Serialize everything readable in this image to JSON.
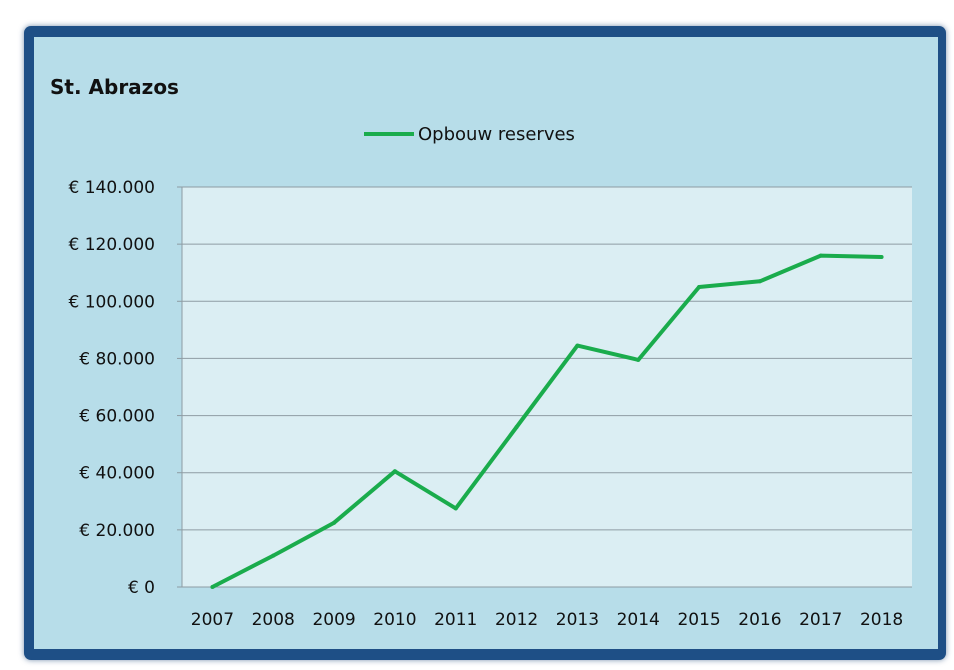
{
  "colors": {
    "frame": "#1e4f86",
    "panel": "#b7dde9",
    "plot_area": "#dbeef3",
    "gridline": "#8e9ca3",
    "series": "#1aac4c"
  },
  "chart_data": {
    "type": "line",
    "title": "St. Abrazos",
    "xlabel": "",
    "ylabel": "",
    "legend_position": "top-center",
    "grid": true,
    "x": [
      "2007",
      "2008",
      "2009",
      "2010",
      "2011",
      "2012",
      "2013",
      "2014",
      "2015",
      "2016",
      "2017",
      "2018"
    ],
    "ylim": [
      0,
      140000
    ],
    "y_ticks": [
      {
        "value": 0,
        "label": "€ 0"
      },
      {
        "value": 20000,
        "label": "€ 20.000"
      },
      {
        "value": 40000,
        "label": "€ 40.000"
      },
      {
        "value": 60000,
        "label": "€ 60.000"
      },
      {
        "value": 80000,
        "label": "€ 80.000"
      },
      {
        "value": 100000,
        "label": "€ 100.000"
      },
      {
        "value": 120000,
        "label": "€ 120.000"
      },
      {
        "value": 140000,
        "label": "€ 140.000"
      }
    ],
    "series": [
      {
        "name": "Opbouw reserves",
        "values": [
          0,
          11000,
          22500,
          40500,
          27500,
          56000,
          84500,
          79500,
          105000,
          107000,
          116000,
          115500
        ]
      }
    ]
  }
}
